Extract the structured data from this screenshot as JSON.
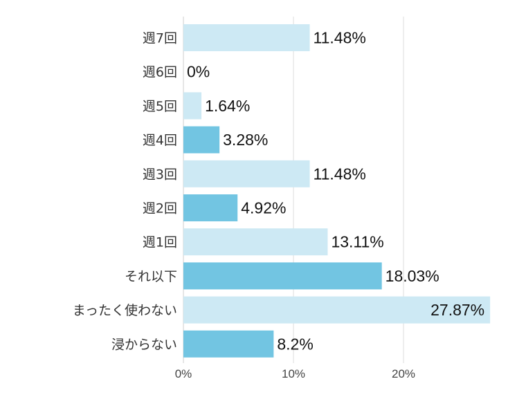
{
  "chart_data": {
    "type": "bar",
    "orientation": "horizontal",
    "categories": [
      "週7回",
      "週6回",
      "週5回",
      "週4回",
      "週3回",
      "週2回",
      "週1回",
      "それ以下",
      "まったく使わない",
      "浸からない"
    ],
    "values": [
      11.48,
      0,
      1.64,
      3.28,
      11.48,
      4.92,
      13.11,
      18.03,
      27.87,
      8.2
    ],
    "value_labels": [
      "11.48%",
      "0%",
      "1.64%",
      "3.28%",
      "11.48%",
      "4.92%",
      "13.11%",
      "18.03%",
      "27.87%",
      "8.2%"
    ],
    "xlim": [
      0,
      28
    ],
    "xticks": [
      0,
      10,
      20
    ],
    "xtick_labels": [
      "0%",
      "10%",
      "20%"
    ],
    "grid": true,
    "legend": "none",
    "colors": {
      "light": "#cde9f4",
      "dark": "#72c5e2"
    },
    "bar_colors": [
      "light",
      "light",
      "light",
      "dark",
      "light",
      "dark",
      "light",
      "dark",
      "light",
      "dark"
    ]
  }
}
